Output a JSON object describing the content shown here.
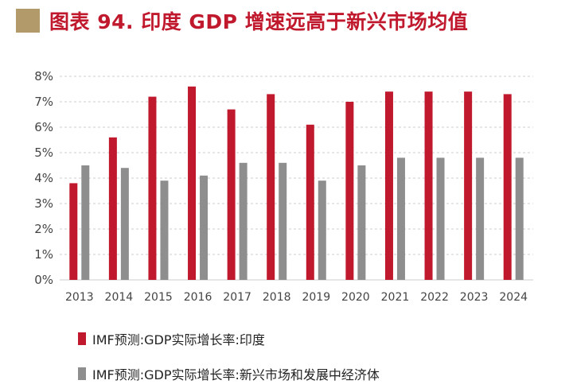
{
  "header": {
    "title": "图表 94. 印度 GDP 增速远高于新兴市场均值"
  },
  "colors": {
    "marker": "#B39A6A",
    "title": "#C0182C",
    "india": "#C0182C",
    "em": "#8E8E8E",
    "grid": "#CCCCCC"
  },
  "chart_data": {
    "type": "bar",
    "categories": [
      "2013",
      "2014",
      "2015",
      "2016",
      "2017",
      "2018",
      "2019",
      "2020",
      "2021",
      "2022",
      "2023",
      "2024"
    ],
    "series": [
      {
        "name": "IMF预测:GDP实际增长率:印度",
        "values": [
          3.8,
          5.6,
          7.2,
          7.6,
          6.7,
          7.3,
          6.1,
          7.0,
          7.4,
          7.4,
          7.4,
          7.3
        ]
      },
      {
        "name": "IMF预测:GDP实际增长率:新兴市场和发展中经济体",
        "values": [
          4.5,
          4.4,
          3.9,
          4.1,
          4.6,
          4.6,
          3.9,
          4.5,
          4.8,
          4.8,
          4.8,
          4.8
        ]
      }
    ],
    "yticks": [
      "0%",
      "1%",
      "2%",
      "3%",
      "4%",
      "5%",
      "6%",
      "7%",
      "8%"
    ],
    "ylim": [
      0,
      8
    ],
    "grid": true,
    "legend_position": "bottom-left"
  }
}
